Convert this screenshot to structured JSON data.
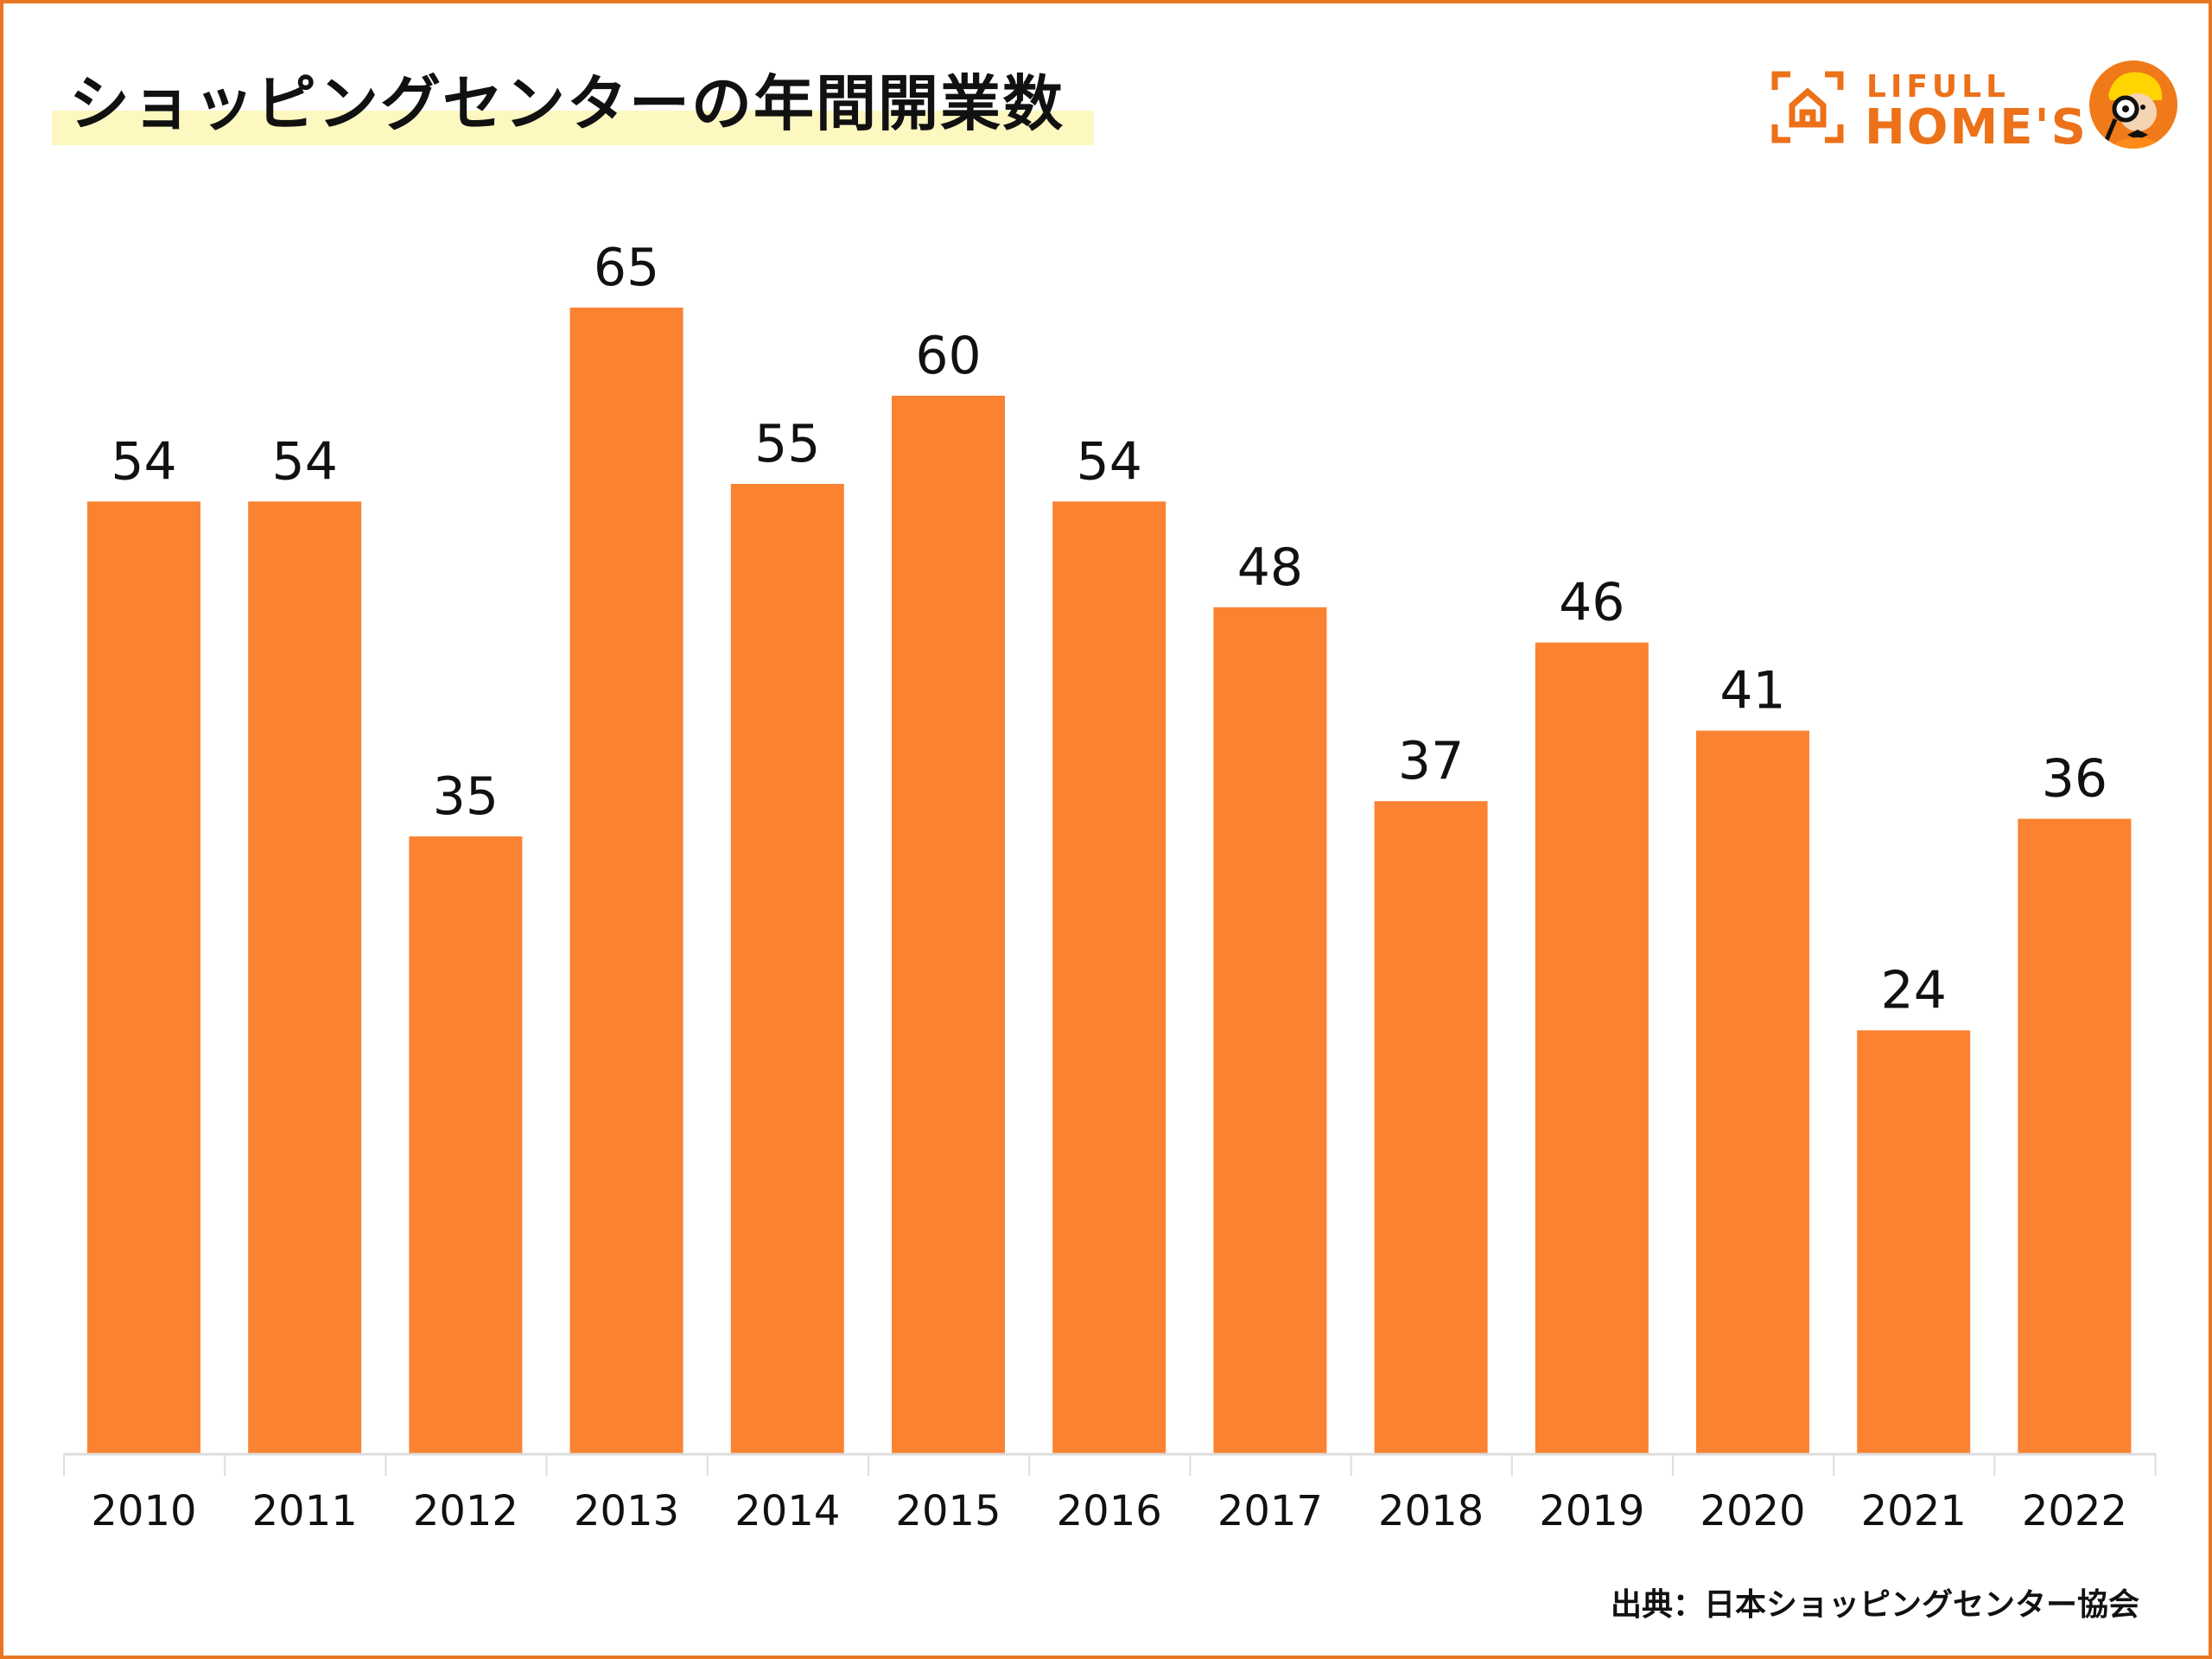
{
  "header": {
    "title": "ショッピングセンターの年間開業数"
  },
  "logo": {
    "line1": "LIFULL",
    "line2": "HOME'S",
    "icon": "house-bracket-icon",
    "mascot": "mascot-magnifier-icon",
    "brand_color": "#ec7118"
  },
  "footer": {
    "source": "出典：日本ショッピングセンター協会"
  },
  "colors": {
    "bar": "#fb8231",
    "frame": "#e87722",
    "title_highlight": "#fdf8c0",
    "axis": "#dddddd"
  },
  "chart_data": {
    "type": "bar",
    "title": "ショッピングセンターの年間開業数",
    "xlabel": "",
    "ylabel": "",
    "categories": [
      "2010",
      "2011",
      "2012",
      "2013",
      "2014",
      "2015",
      "2016",
      "2017",
      "2018",
      "2019",
      "2020",
      "2021",
      "2022"
    ],
    "values": [
      54,
      54,
      35,
      65,
      55,
      60,
      54,
      48,
      37,
      46,
      41,
      24,
      36
    ],
    "ylim": [
      0,
      65
    ],
    "grid": false,
    "data_labels": true,
    "legend": "none"
  }
}
